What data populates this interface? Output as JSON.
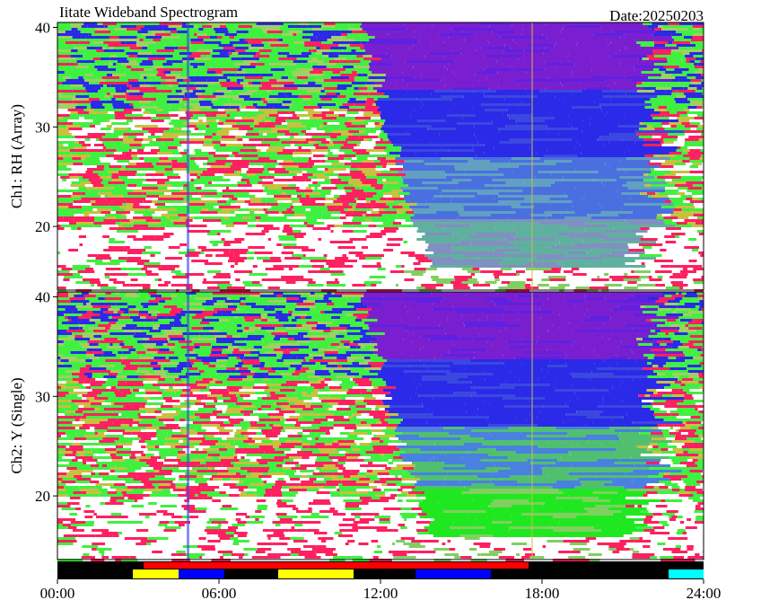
{
  "title": "Iitate Wideband Spectrogram",
  "date": "Date:20250203",
  "chart_data": [
    {
      "type": "heatmap",
      "ylabel": "Ch1: RH (Array)",
      "xlim": [
        0,
        24
      ],
      "ylim": [
        13.6,
        40.5
      ],
      "yticks": [
        20,
        30,
        40
      ]
    },
    {
      "type": "heatmap",
      "ylabel": "Ch2: Y (Single)",
      "xlim": [
        0,
        24
      ],
      "ylim": [
        13.6,
        40.5
      ],
      "yticks": [
        20,
        30,
        40
      ],
      "xticks": [
        {
          "value": 0,
          "label": "00:00"
        },
        {
          "value": 6,
          "label": "06:00"
        },
        {
          "value": 12,
          "label": "12:00"
        },
        {
          "value": 18,
          "label": "18:00"
        },
        {
          "value": 24,
          "label": "24:00"
        }
      ]
    }
  ],
  "status_bars": {
    "upper": [
      {
        "start": 3.2,
        "end": 17.5,
        "color": "#ff0000"
      }
    ],
    "lower": [
      {
        "start": 2.8,
        "end": 4.5,
        "color": "#ffff00"
      },
      {
        "start": 4.5,
        "end": 6.2,
        "color": "#0000ff"
      },
      {
        "start": 8.2,
        "end": 11.0,
        "color": "#ffff00"
      },
      {
        "start": 13.3,
        "end": 16.1,
        "color": "#0000ff"
      },
      {
        "start": 22.7,
        "end": 24.0,
        "color": "#00ffff"
      }
    ]
  }
}
